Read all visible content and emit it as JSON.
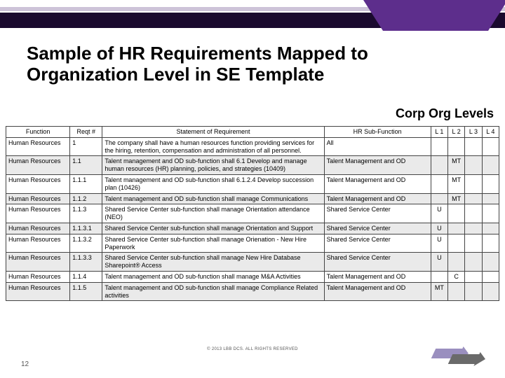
{
  "title": "Sample of HR Requirements Mapped to Organization Level in SE Template",
  "corp_label": "Corp Org Levels",
  "columns": [
    "Function",
    "Reqt #",
    "Statement of Requirement",
    "HR Sub-Function",
    "L 1",
    "L 2",
    "L 3",
    "L 4"
  ],
  "rows": [
    {
      "func": "Human Resources",
      "reqt": "1",
      "stmt": "The company shall have a human resources function providing services for the hiring, retention, compensation and administration of all personnel.",
      "sub": "All",
      "l1": "",
      "l2": "",
      "l3": "",
      "l4": ""
    },
    {
      "func": "Human Resources",
      "reqt": "1.1",
      "stmt": "Talent management and OD sub-function shall 6.1 Develop and manage human resources (HR) planning, policies, and strategies (10409)",
      "sub": "Talent Management and OD",
      "l1": "",
      "l2": "MT",
      "l3": "",
      "l4": ""
    },
    {
      "func": "Human Resources",
      "reqt": "1.1.1",
      "stmt": "Talent management and OD sub-function shall 6.1.2.4 Develop succession plan (10426)",
      "sub": "Talent Management and OD",
      "l1": "",
      "l2": "MT",
      "l3": "",
      "l4": ""
    },
    {
      "func": "Human Resources",
      "reqt": "1.1.2",
      "stmt": "Talent management and OD sub-function shall manage Communications",
      "sub": "Talent Management and OD",
      "l1": "",
      "l2": "MT",
      "l3": "",
      "l4": ""
    },
    {
      "func": "Human Resources",
      "reqt": "1.1.3",
      "stmt": "Shared Service Center sub-function shall manage Orientation attendance (NEO)",
      "sub": "Shared Service Center",
      "l1": "U",
      "l2": "",
      "l3": "",
      "l4": ""
    },
    {
      "func": "Human Resources",
      "reqt": "1.1.3.1",
      "stmt": "Shared Service Center sub-function shall manage Orientation and Support",
      "sub": "Shared Service Center",
      "l1": "U",
      "l2": "",
      "l3": "",
      "l4": ""
    },
    {
      "func": "Human Resources",
      "reqt": "1.1.3.2",
      "stmt": "Shared Service Center sub-function shall manage Orienation - New Hire Paperwork",
      "sub": "Shared Service Center",
      "l1": "U",
      "l2": "",
      "l3": "",
      "l4": ""
    },
    {
      "func": "Human Resources",
      "reqt": "1.1.3.3",
      "stmt": "Shared Service Center sub-function shall manage New Hire Database Sharepoint® Access",
      "sub": "Shared Service Center",
      "l1": "U",
      "l2": "",
      "l3": "",
      "l4": ""
    },
    {
      "func": "Human Resources",
      "reqt": "1.1.4",
      "stmt": "Talent management and OD sub-function shall manage M&A Activities",
      "sub": "Talent Management and OD",
      "l1": "",
      "l2": "C",
      "l3": "",
      "l4": ""
    },
    {
      "func": "Human Resources",
      "reqt": "1.1.5",
      "stmt": "Talent management and OD sub-function shall manage Compliance Related activities",
      "sub": "Talent Management and OD",
      "l1": "MT",
      "l2": "",
      "l3": "",
      "l4": ""
    }
  ],
  "footer_copy": "© 2013 LBB DCS. ALL RIGHTS RESERVED",
  "slide_num": "12",
  "colors": {
    "brand_purple": "#5d2e8c",
    "dark_band": "#1a0a2e",
    "light_band": "#cdc3d8",
    "row_alt": "#eaeaea",
    "border": "#444444"
  }
}
